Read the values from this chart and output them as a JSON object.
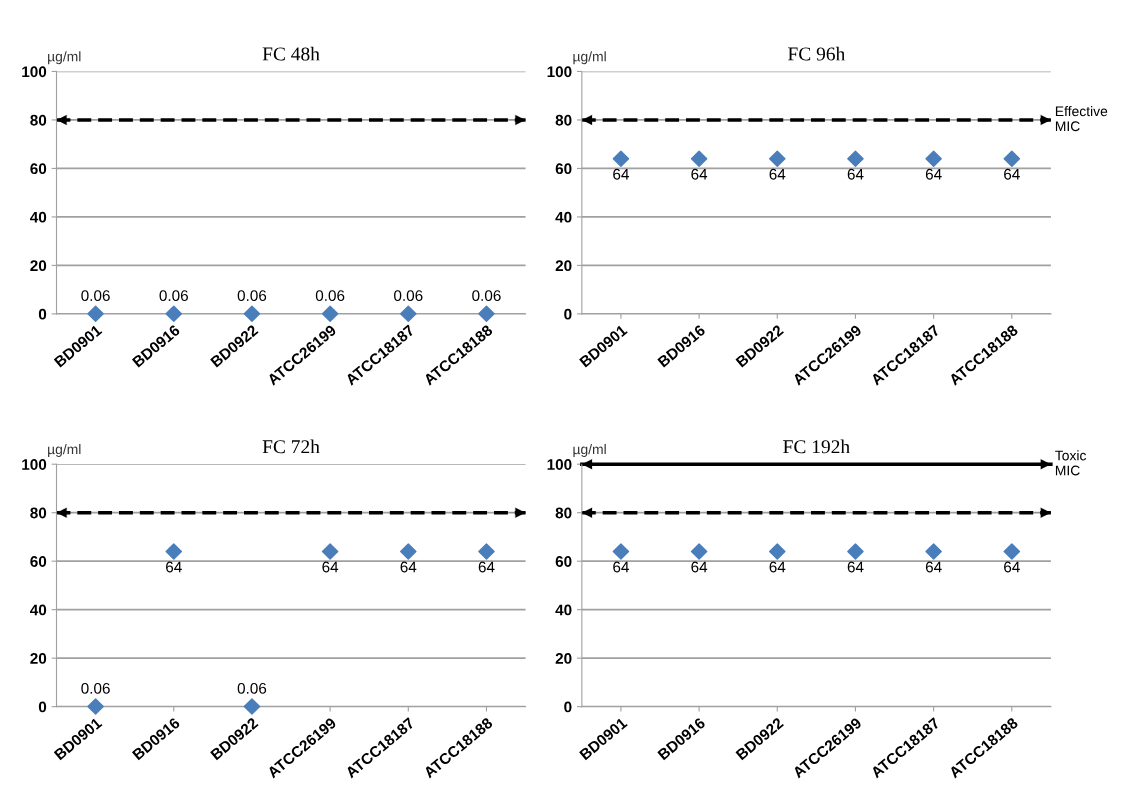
{
  "chart_data": [
    {
      "type": "scatter",
      "title": "FC 48h",
      "ylabel": "µg/ml",
      "categories": [
        "BD0901",
        "BD0916",
        "BD0922",
        "ATCC26199",
        "ATCC18187",
        "ATCC18188"
      ],
      "series": [
        {
          "color": "#4a7ebb",
          "values": [
            0.06,
            0.06,
            0.06,
            0.06,
            0.06,
            0.06
          ]
        }
      ],
      "ylim": [
        0,
        100
      ],
      "yticks": [
        0,
        20,
        40,
        60,
        80,
        100
      ],
      "grid": "y",
      "marker": "diamond",
      "data_labels": true,
      "ref_lines": [
        {
          "axis": "y",
          "value": 80,
          "line_style": "dashed",
          "color": "#000000"
        }
      ]
    },
    {
      "type": "scatter",
      "title": "FC 96h",
      "ylabel": "µg/ml",
      "categories": [
        "BD0901",
        "BD0916",
        "BD0922",
        "ATCC26199",
        "ATCC18187",
        "ATCC18188"
      ],
      "series": [
        {
          "color": "#4a7ebb",
          "values": [
            64,
            64,
            64,
            64,
            64,
            64
          ]
        }
      ],
      "ylim": [
        0,
        100
      ],
      "yticks": [
        0,
        20,
        40,
        60,
        80,
        100
      ],
      "grid": "y",
      "marker": "diamond",
      "data_labels": true,
      "ref_lines": [
        {
          "axis": "y",
          "value": 80,
          "line_style": "dashed",
          "color": "#000000",
          "label": "Effective\nMIC"
        }
      ]
    },
    {
      "type": "scatter",
      "title": "FC 72h",
      "ylabel": "µg/ml",
      "categories": [
        "BD0901",
        "BD0916",
        "BD0922",
        "ATCC26199",
        "ATCC18187",
        "ATCC18188"
      ],
      "series": [
        {
          "color": "#4a7ebb",
          "values": [
            0.06,
            64,
            0.06,
            64,
            64,
            64
          ]
        }
      ],
      "ylim": [
        0,
        100
      ],
      "yticks": [
        0,
        20,
        40,
        60,
        80,
        100
      ],
      "grid": "y",
      "marker": "diamond",
      "data_labels": true,
      "ref_lines": [
        {
          "axis": "y",
          "value": 80,
          "line_style": "dashed",
          "color": "#000000"
        }
      ]
    },
    {
      "type": "scatter",
      "title": "FC 192h",
      "ylabel": "µg/ml",
      "categories": [
        "BD0901",
        "BD0916",
        "BD0922",
        "ATCC26199",
        "ATCC18187",
        "ATCC18188"
      ],
      "series": [
        {
          "color": "#4a7ebb",
          "values": [
            64,
            64,
            64,
            64,
            64,
            64
          ]
        }
      ],
      "ylim": [
        0,
        100
      ],
      "yticks": [
        0,
        20,
        40,
        60,
        80,
        100
      ],
      "grid": "y",
      "marker": "diamond",
      "data_labels": true,
      "ref_lines": [
        {
          "axis": "y",
          "value": 80,
          "line_style": "dashed",
          "color": "#000000"
        },
        {
          "axis": "y",
          "value": 100,
          "line_style": "solid",
          "color": "#000000",
          "label": "Toxic\nMIC"
        }
      ]
    }
  ]
}
